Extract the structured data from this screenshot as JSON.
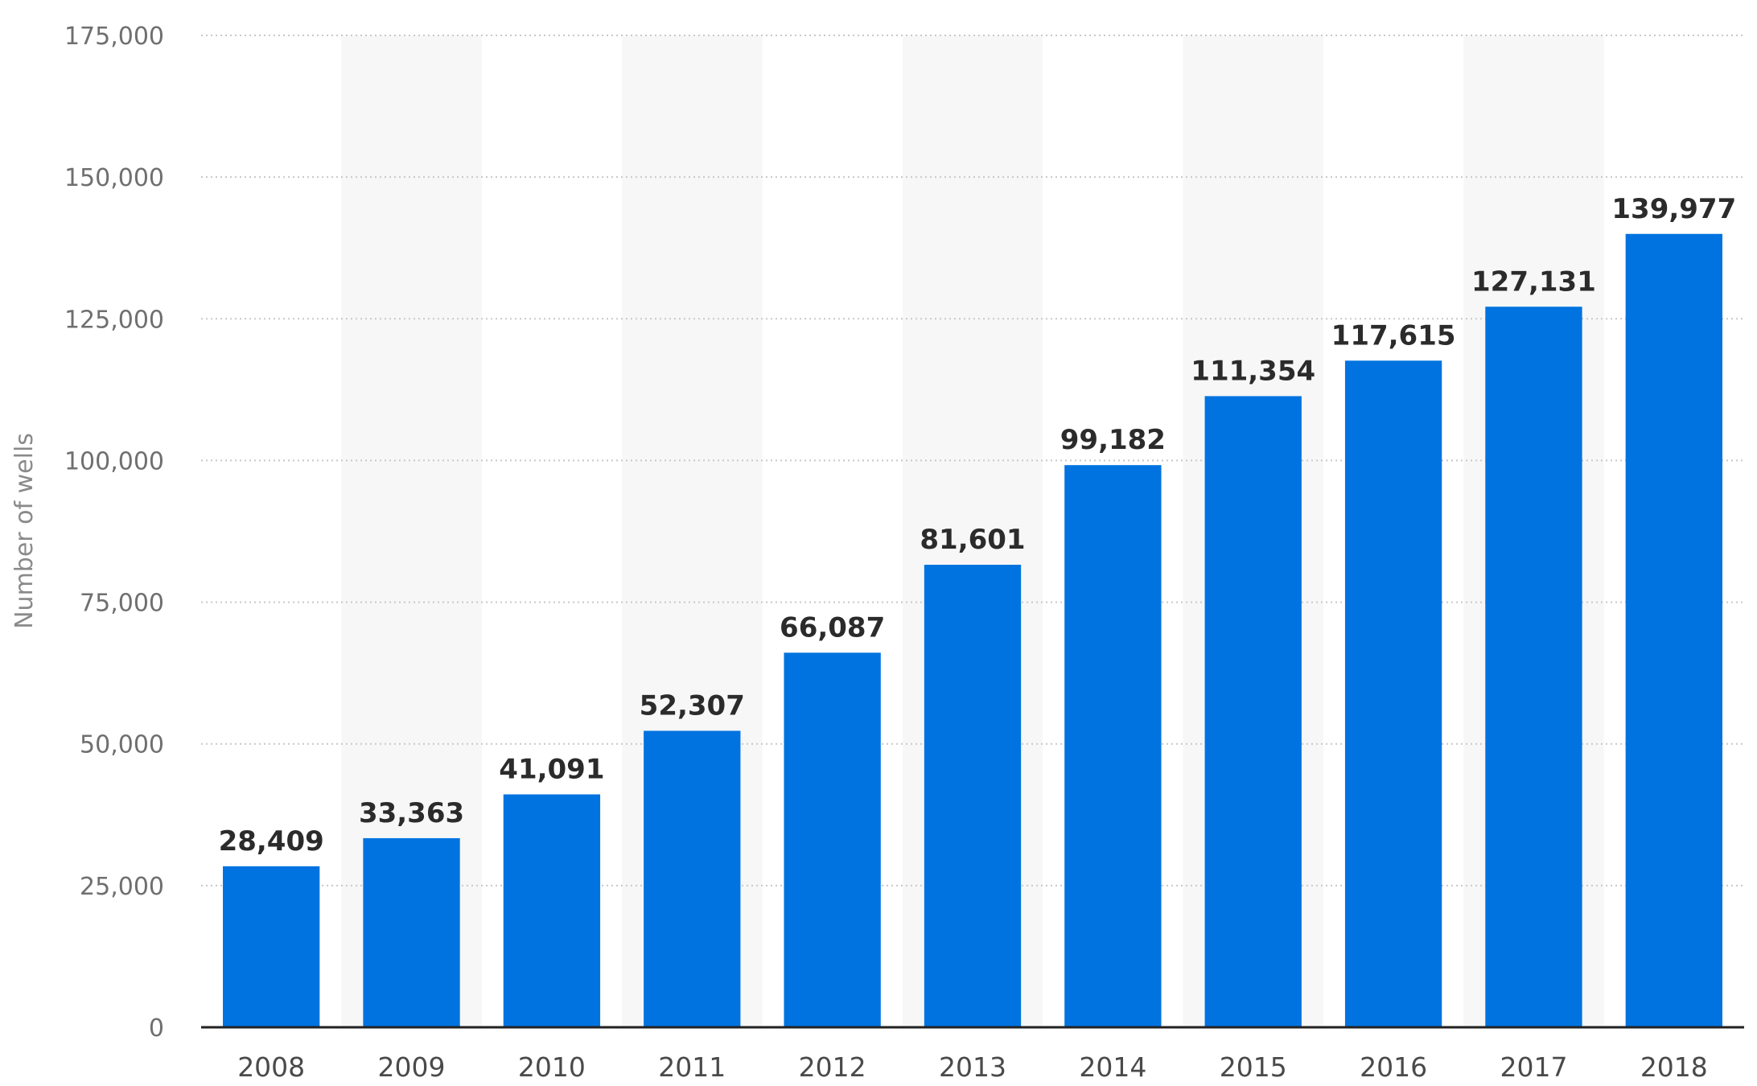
{
  "chart_data": {
    "type": "bar",
    "title": "",
    "xlabel": "",
    "ylabel": "Number of wells",
    "ylim": [
      0,
      175000
    ],
    "yticks": [
      0,
      25000,
      50000,
      75000,
      100000,
      125000,
      150000,
      175000
    ],
    "ytick_labels": [
      "0",
      "25,000",
      "50,000",
      "75,000",
      "100,000",
      "125,000",
      "150,000",
      "175,000"
    ],
    "grid": true,
    "legend": "none",
    "categories": [
      "2008",
      "2009",
      "2010",
      "2011",
      "2012",
      "2013",
      "2014",
      "2015",
      "2016",
      "2017",
      "2018"
    ],
    "values": [
      28409,
      33363,
      41091,
      52307,
      66087,
      81601,
      99182,
      111354,
      117615,
      127131,
      139977
    ],
    "value_labels": [
      "28,409",
      "33,363",
      "41,091",
      "52,307",
      "66,087",
      "81,601",
      "99,182",
      "111,354",
      "117,615",
      "127,131",
      "139,977"
    ],
    "colors": {
      "bar": "#0073e0",
      "grid": "#c8c8c8",
      "axis": "#222222",
      "alternating_band": "#f7f7f7"
    }
  }
}
